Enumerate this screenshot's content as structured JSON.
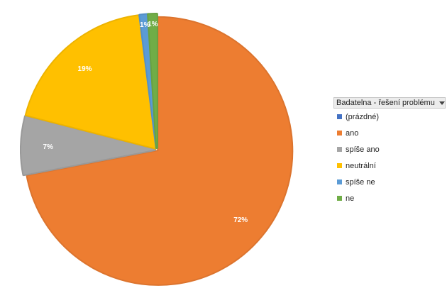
{
  "chart_data": {
    "type": "pie",
    "categories": [
      "(prázdné)",
      "ano",
      "spíše ano",
      "neutrální",
      "spíše ne",
      "ne"
    ],
    "values": [
      0,
      72,
      7,
      19,
      1,
      1
    ],
    "data_labels": [
      "",
      "72%",
      "7%",
      "19%",
      "1%",
      "1%"
    ],
    "colors": [
      "#4472C4",
      "#ED7D31",
      "#A5A5A5",
      "#FFC000",
      "#5B9BD5",
      "#70AD47"
    ],
    "legend_title": "Badatelna - řešení problému",
    "legend_position": "right",
    "start_angle_deg": 0,
    "direction": "clockwise"
  },
  "legend": {
    "title": "Badatelna - řešení problému",
    "dropdown_icon": "chevron-down-icon"
  }
}
